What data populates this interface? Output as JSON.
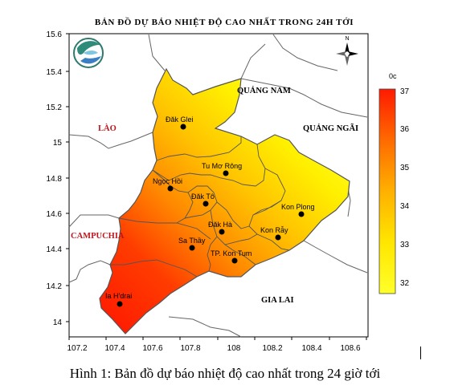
{
  "title": "BẢN ĐỒ DỰ BÁO NHIỆT ĐỘ CAO NHẤT TRONG 24H TỚI",
  "caption": "Hình 1: Bản đồ dự báo nhiệt độ cao nhất trong 24 giờ tới",
  "axes": {
    "x_ticks": [
      "107.2",
      "107.4",
      "107.6",
      "107.8",
      "108",
      "108.2",
      "108.4",
      "108.6"
    ],
    "y_ticks": [
      "15.6",
      "15.4",
      "15.2",
      "15",
      "14.8",
      "14.6",
      "14.4",
      "14.2",
      "14"
    ]
  },
  "legend": {
    "unit": "0c",
    "min": 32,
    "max": 37,
    "ticks": [
      "37",
      "36",
      "35",
      "34",
      "33",
      "32"
    ],
    "colors": [
      "#ff1a00",
      "#ff6a00",
      "#ffb000",
      "#ffe600",
      "#ffff2a"
    ]
  },
  "north_arrow_label": "N",
  "region_labels": {
    "quang_nam": "QUẢNG NAM",
    "quang_ngai": "QUẢNG NGÃI",
    "lao": "LÀO",
    "campuchia": "CAMPUCHIA",
    "gia_lai": "GIA LAI"
  },
  "places": [
    {
      "name": "Đăk Glei"
    },
    {
      "name": "Tu Mơ Rông"
    },
    {
      "name": "Ngọc Hồi"
    },
    {
      "name": "Đăk Tô"
    },
    {
      "name": "Kon Plong"
    },
    {
      "name": "Đăk Hà"
    },
    {
      "name": "Kon Rẫy"
    },
    {
      "name": "Sa Thầy"
    },
    {
      "name": "TP. Kon Tum"
    },
    {
      "name": "Ia H'drai"
    }
  ],
  "colors": {
    "province_hot": "#ff2a00",
    "province_cool": "#ffff2a",
    "border": "#555555",
    "label_red": "#c0141c"
  }
}
